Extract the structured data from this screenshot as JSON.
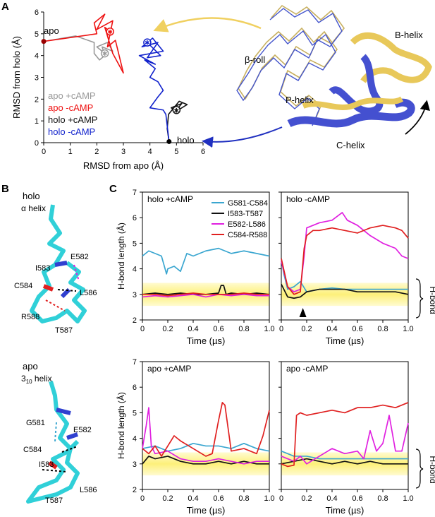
{
  "panels": {
    "a": "A",
    "b": "B",
    "c": "C"
  },
  "panel_a": {
    "apo_label": "apo",
    "holo_label": "holo",
    "structure_labels": {
      "beta_roll": "β-roll",
      "b_helix": "B-helix",
      "p_helix": "P-helix",
      "c_helix": "C-helix"
    }
  },
  "panel_b": {
    "holo_title_1": "holo",
    "holo_title_2": "α helix",
    "apo_title_1": "apo",
    "apo_title_2_main": "3",
    "apo_title_2_sub": "10",
    "apo_title_2_tail": " helix",
    "holo_residues": [
      "E582",
      "I583",
      "C584",
      "L586",
      "R588",
      "T587"
    ],
    "apo_residues": [
      "G581",
      "E582",
      "C584",
      "I583",
      "L586",
      "T587"
    ]
  },
  "panel_c": {
    "hbond_label": "H-bond",
    "colors": {
      "G581-C584": "#3aa6d0",
      "I583-T587": "#111111",
      "E582-L586": "#e020e0",
      "C584-R588": "#e02020"
    }
  },
  "chart_data": [
    {
      "type": "line",
      "title": "",
      "xlabel": "RMSD from apo (Å)",
      "ylabel": "RMSD from holo (Å)",
      "xlim": [
        0,
        6
      ],
      "ylim": [
        0,
        6
      ],
      "xticks": [
        "0",
        "1",
        "2",
        "3",
        "4",
        "5",
        "6"
      ],
      "yticks": [
        "0",
        "1",
        "2",
        "3",
        "4",
        "5",
        "6"
      ],
      "legend_placement": "bottom-left",
      "series": [
        {
          "name": "apo +cAMP",
          "color": "#999999",
          "points": [
            [
              0,
              4.65
            ],
            [
              1.2,
              4.9
            ],
            [
              1.9,
              4.6
            ],
            [
              1.9,
              4.1
            ],
            [
              2.1,
              3.8
            ],
            [
              2.3,
              4.0
            ],
            [
              2.2,
              4.4
            ],
            [
              2.6,
              4.2
            ],
            [
              2.4,
              4.6
            ],
            [
              2.0,
              4.4
            ],
            [
              2.3,
              4.1
            ]
          ]
        },
        {
          "name": "apo -cAMP",
          "color": "#ee1111",
          "points": [
            [
              0,
              4.65
            ],
            [
              2.0,
              5.0
            ],
            [
              1.9,
              5.5
            ],
            [
              2.3,
              5.9
            ],
            [
              2.0,
              5.2
            ],
            [
              2.6,
              5.6
            ],
            [
              2.5,
              5.0
            ],
            [
              2.4,
              4.4
            ],
            [
              2.7,
              4.7
            ],
            [
              3.0,
              3.2
            ],
            [
              2.6,
              4.1
            ],
            [
              2.3,
              5.3
            ],
            [
              2.5,
              5.1
            ]
          ]
        },
        {
          "name": "holo +cAMP",
          "color": "#111111",
          "points": [
            [
              4.72,
              0.05
            ],
            [
              4.65,
              0.65
            ],
            [
              4.7,
              1.3
            ],
            [
              4.9,
              1.6
            ],
            [
              5.1,
              1.9
            ],
            [
              5.4,
              1.75
            ],
            [
              5.0,
              1.45
            ],
            [
              4.8,
              1.6
            ],
            [
              5.2,
              1.8
            ],
            [
              5.0,
              1.5
            ]
          ]
        },
        {
          "name": "holo -cAMP",
          "color": "#1122cc",
          "points": [
            [
              4.72,
              0.05
            ],
            [
              4.6,
              1.3
            ],
            [
              4.5,
              1.5
            ],
            [
              4.0,
              1.6
            ],
            [
              4.3,
              2.1
            ],
            [
              4.5,
              2.4
            ],
            [
              4.3,
              2.8
            ],
            [
              4.0,
              3.0
            ],
            [
              4.2,
              3.4
            ],
            [
              3.8,
              3.8
            ],
            [
              4.2,
              3.6
            ],
            [
              3.6,
              4.0
            ],
            [
              4.5,
              4.2
            ],
            [
              4.1,
              4.8
            ],
            [
              3.7,
              4.4
            ],
            [
              4.3,
              4.6
            ],
            [
              3.9,
              3.9
            ],
            [
              4.4,
              4.0
            ],
            [
              3.9,
              4.6
            ]
          ]
        }
      ]
    },
    {
      "type": "line",
      "title": "holo +cAMP",
      "xlabel": "Time (µs)",
      "ylabel": "H-bond length (Å)",
      "xlim": [
        0,
        1.0
      ],
      "ylim": [
        2,
        7
      ],
      "xticks": [
        "0",
        "0.2",
        "0.4",
        "0.6",
        "0.8",
        "1.0"
      ],
      "yticks": [
        "2",
        "3",
        "4",
        "5",
        "6",
        "7"
      ],
      "legend": [
        "G581-C584",
        "I583-T587",
        "E582-L586",
        "C584-R588"
      ],
      "series": [
        {
          "name": "G581-C584",
          "x": [
            0,
            0.05,
            0.1,
            0.15,
            0.19,
            0.2,
            0.25,
            0.3,
            0.35,
            0.4,
            0.5,
            0.6,
            0.7,
            0.8,
            0.9,
            1.0
          ],
          "values": [
            4.5,
            4.7,
            4.6,
            4.5,
            3.8,
            4.0,
            4.1,
            3.9,
            4.6,
            4.5,
            4.7,
            4.8,
            4.6,
            4.7,
            4.6,
            4.5
          ]
        },
        {
          "name": "I583-T587",
          "x": [
            0,
            0.1,
            0.2,
            0.3,
            0.4,
            0.5,
            0.6,
            0.62,
            0.64,
            0.66,
            0.7,
            0.8,
            0.9,
            1.0
          ],
          "values": [
            3.0,
            3.05,
            3.0,
            3.05,
            3.0,
            3.0,
            3.05,
            3.35,
            3.35,
            3.0,
            3.05,
            3.0,
            3.05,
            3.0
          ]
        },
        {
          "name": "E582-L586",
          "x": [
            0,
            0.1,
            0.2,
            0.3,
            0.4,
            0.5,
            0.6,
            0.7,
            0.8,
            0.9,
            1.0
          ],
          "values": [
            2.9,
            2.95,
            2.9,
            2.95,
            3.0,
            2.9,
            3.0,
            2.95,
            3.0,
            2.95,
            2.95
          ]
        },
        {
          "name": "C584-R588",
          "x": [
            0,
            0.1,
            0.2,
            0.3,
            0.4,
            0.5,
            0.6,
            0.7,
            0.8,
            0.9,
            1.0
          ],
          "values": [
            3.0,
            3.0,
            2.95,
            3.0,
            3.05,
            3.0,
            3.0,
            3.0,
            3.05,
            3.0,
            3.0
          ]
        }
      ]
    },
    {
      "type": "line",
      "title": "holo -cAMP",
      "xlabel": "Time (µs)",
      "ylabel": "",
      "xlim": [
        0,
        1.0
      ],
      "ylim": [
        2,
        7
      ],
      "xticks": [
        "0",
        "0.2",
        "0.4",
        "0.6",
        "0.8",
        "1.0"
      ],
      "annotation": "arrowhead at t ≈ 0.17 µs",
      "series": [
        {
          "name": "G581-C584",
          "x": [
            0,
            0.02,
            0.05,
            0.1,
            0.15,
            0.2,
            0.3,
            0.4,
            0.5,
            0.6,
            0.7,
            0.8,
            0.9,
            1.0
          ],
          "values": [
            4.4,
            3.8,
            3.2,
            3.3,
            3.5,
            3.1,
            3.2,
            3.25,
            3.2,
            3.2,
            3.2,
            3.2,
            3.2,
            3.2
          ]
        },
        {
          "name": "I583-T587",
          "x": [
            0,
            0.05,
            0.1,
            0.15,
            0.2,
            0.3,
            0.4,
            0.5,
            0.6,
            0.7,
            0.8,
            0.9,
            1.0
          ],
          "values": [
            3.4,
            2.9,
            2.85,
            2.9,
            3.1,
            3.2,
            3.2,
            3.2,
            3.1,
            3.1,
            3.1,
            3.1,
            3.0
          ]
        },
        {
          "name": "E582-L586",
          "x": [
            0,
            0.05,
            0.1,
            0.15,
            0.18,
            0.2,
            0.25,
            0.3,
            0.4,
            0.48,
            0.52,
            0.6,
            0.7,
            0.8,
            0.9,
            0.95,
            1.0
          ],
          "values": [
            4.3,
            3.3,
            3.1,
            3.2,
            4.5,
            5.6,
            5.7,
            5.8,
            5.9,
            6.2,
            5.9,
            5.7,
            5.3,
            5.0,
            4.8,
            4.5,
            4.4
          ]
        },
        {
          "name": "C584-R588",
          "x": [
            0,
            0.05,
            0.1,
            0.15,
            0.18,
            0.2,
            0.25,
            0.3,
            0.4,
            0.5,
            0.6,
            0.7,
            0.8,
            0.9,
            0.95,
            1.0
          ],
          "values": [
            4.4,
            3.3,
            3.0,
            3.1,
            4.8,
            5.3,
            5.5,
            5.5,
            5.6,
            5.5,
            5.4,
            5.6,
            5.7,
            5.6,
            5.5,
            5.2
          ]
        }
      ]
    },
    {
      "type": "line",
      "title": "apo +cAMP",
      "xlabel": "Time (µs)",
      "ylabel": "H-bond length (Å)",
      "xlim": [
        0,
        1.0
      ],
      "ylim": [
        2,
        7
      ],
      "xticks": [
        "0",
        "0.2",
        "0.4",
        "0.6",
        "0.8",
        "1.0"
      ],
      "yticks": [
        "2",
        "3",
        "4",
        "5",
        "6",
        "7"
      ],
      "series": [
        {
          "name": "G581-C584",
          "x": [
            0,
            0.1,
            0.2,
            0.3,
            0.4,
            0.5,
            0.6,
            0.7,
            0.8,
            0.9,
            1.0
          ],
          "values": [
            3.6,
            3.7,
            3.5,
            3.6,
            3.8,
            3.7,
            3.7,
            3.6,
            3.8,
            3.6,
            3.5
          ]
        },
        {
          "name": "I583-T587",
          "x": [
            0,
            0.05,
            0.1,
            0.2,
            0.3,
            0.4,
            0.5,
            0.6,
            0.7,
            0.8,
            0.9,
            1.0
          ],
          "values": [
            3.0,
            3.3,
            3.2,
            3.3,
            3.1,
            3.0,
            3.0,
            3.1,
            3.0,
            3.1,
            3.0,
            3.0
          ]
        },
        {
          "name": "E582-L586",
          "x": [
            0,
            0.03,
            0.05,
            0.07,
            0.1,
            0.2,
            0.3,
            0.4,
            0.5,
            0.6,
            0.7,
            0.8,
            0.9,
            1.0
          ],
          "values": [
            3.6,
            4.5,
            5.2,
            3.7,
            3.4,
            3.5,
            3.2,
            3.1,
            3.1,
            3.2,
            3.1,
            3.0,
            3.1,
            3.1
          ]
        },
        {
          "name": "C584-R588",
          "x": [
            0,
            0.05,
            0.1,
            0.15,
            0.2,
            0.25,
            0.3,
            0.4,
            0.5,
            0.55,
            0.6,
            0.63,
            0.65,
            0.7,
            0.8,
            0.9,
            0.95,
            1.0
          ],
          "values": [
            3.6,
            3.4,
            3.7,
            3.3,
            3.7,
            4.1,
            3.9,
            3.6,
            3.3,
            3.4,
            4.7,
            5.4,
            5.3,
            3.5,
            3.6,
            3.4,
            4.1,
            5.1
          ]
        }
      ]
    },
    {
      "type": "line",
      "title": "apo -cAMP",
      "xlabel": "Time (µs)",
      "ylabel": "",
      "xlim": [
        0,
        1.0
      ],
      "ylim": [
        2,
        7
      ],
      "xticks": [
        "0",
        "0.2",
        "0.4",
        "0.6",
        "0.8",
        "1.0"
      ],
      "series": [
        {
          "name": "G581-C584",
          "x": [
            0,
            0.1,
            0.2,
            0.3,
            0.4,
            0.5,
            0.6,
            0.7,
            0.8,
            0.9,
            1.0
          ],
          "values": [
            3.5,
            3.3,
            3.3,
            3.2,
            3.2,
            3.2,
            3.2,
            3.2,
            3.2,
            3.2,
            3.2
          ]
        },
        {
          "name": "I583-T587",
          "x": [
            0,
            0.1,
            0.2,
            0.3,
            0.4,
            0.5,
            0.6,
            0.7,
            0.8,
            0.9,
            1.0
          ],
          "values": [
            3.0,
            3.1,
            3.2,
            3.1,
            3.0,
            3.1,
            3.0,
            3.1,
            3.0,
            3.0,
            3.0
          ]
        },
        {
          "name": "E582-L586",
          "x": [
            0,
            0.1,
            0.15,
            0.2,
            0.3,
            0.4,
            0.5,
            0.6,
            0.65,
            0.7,
            0.75,
            0.8,
            0.85,
            0.9,
            0.95,
            1.0
          ],
          "values": [
            3.3,
            3.1,
            3.3,
            3.0,
            3.3,
            3.6,
            3.4,
            3.5,
            3.2,
            4.3,
            3.5,
            3.8,
            4.9,
            3.5,
            3.5,
            4.6
          ]
        },
        {
          "name": "C584-R588",
          "x": [
            0,
            0.05,
            0.1,
            0.12,
            0.15,
            0.2,
            0.3,
            0.4,
            0.5,
            0.6,
            0.7,
            0.8,
            0.9,
            1.0
          ],
          "values": [
            3.0,
            2.9,
            2.95,
            4.9,
            5.0,
            4.9,
            5.0,
            5.1,
            5.0,
            5.2,
            5.2,
            5.3,
            5.2,
            5.4
          ]
        }
      ]
    }
  ]
}
